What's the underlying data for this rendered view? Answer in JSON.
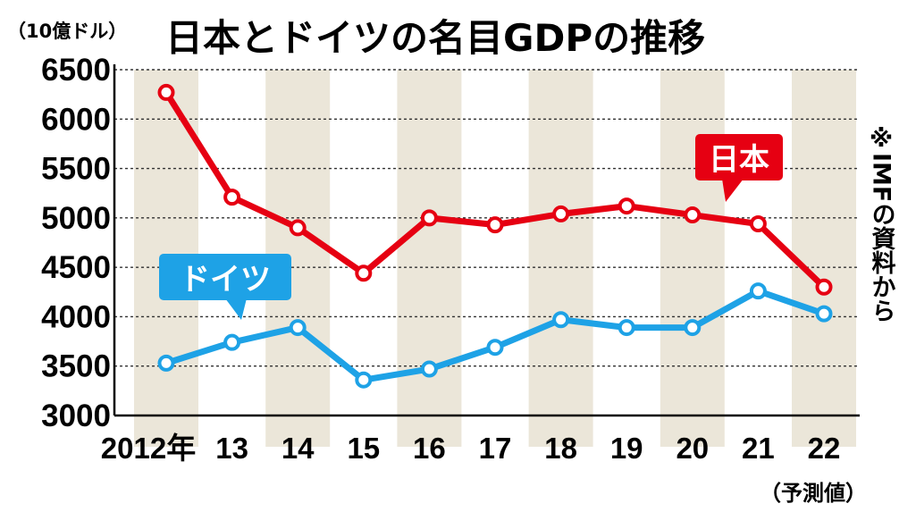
{
  "chart_data": {
    "type": "line",
    "title": "日本とドイツの名目GDPの推移",
    "unit_label": "（10億ドル）",
    "source_note": "※IMFの資料から",
    "forecast_note": "（予測値）",
    "categories": [
      "2012年",
      "13",
      "14",
      "15",
      "16",
      "17",
      "18",
      "19",
      "20",
      "21",
      "22"
    ],
    "ylim": [
      3000,
      6500
    ],
    "yticks": [
      "6500",
      "6000",
      "5500",
      "5000",
      "4500",
      "4000",
      "3500",
      "3000"
    ],
    "grid": true,
    "series": [
      {
        "name": "日本",
        "color": "#e60012",
        "values": [
          6270,
          5210,
          4900,
          4440,
          5000,
          4930,
          5040,
          5120,
          5030,
          4940,
          4300
        ]
      },
      {
        "name": "ドイツ",
        "color": "#1ea2e6",
        "values": [
          3530,
          3740,
          3890,
          3360,
          3470,
          3690,
          3970,
          3890,
          3890,
          4260,
          4030
        ]
      }
    ]
  }
}
